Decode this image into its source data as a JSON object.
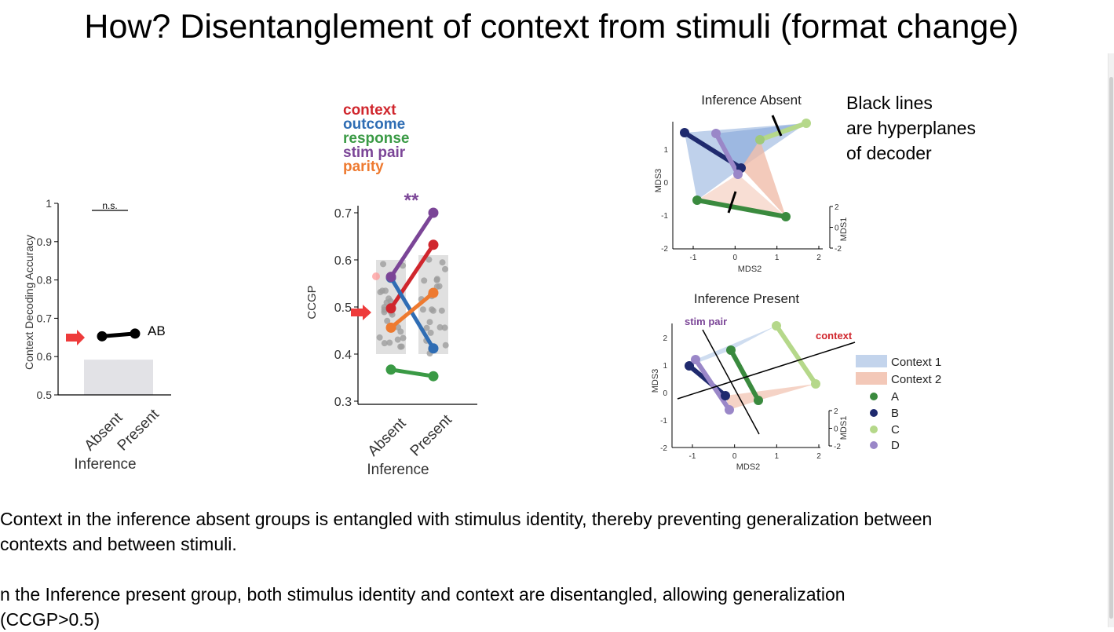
{
  "title": "How? Disentanglement of context from stimuli (format change)",
  "bullets": [
    {
      "line1": "Context in the inference absent groups is entangled with stimulus identity, thereby preventing generalization between",
      "line2": "contexts and between stimuli."
    },
    {
      "line1": "n the Inference present group, both stimulus identity and context are disentangled, allowing generalization",
      "line2": "(CCGP>0.5)"
    }
  ],
  "colors": {
    "context": "#d0262d",
    "outcome": "#2f6db4",
    "response": "#3a9a45",
    "stim_pair": "#7b4597",
    "parity": "#ee7a30",
    "A": "#3a8a3e",
    "B": "#1f2a6e",
    "C": "#b5d88a",
    "D": "#9a87c8",
    "context1_fill": "#a9c2e4",
    "context2_fill": "#efb8a4"
  },
  "chart_data": [
    {
      "type": "line",
      "ylabel": "Context Decoding Accuracy",
      "xlabel": "Inference",
      "categories": [
        "Absent",
        "Present"
      ],
      "ylim": [
        0.5,
        1
      ],
      "yticks": [
        "0.5",
        "0.6",
        "0.7",
        "0.8",
        "0.9",
        "1"
      ],
      "series": [
        {
          "name": "AB",
          "values": [
            0.653,
            0.66
          ]
        }
      ],
      "null_bars": [
        0.592,
        0.592
      ],
      "significance": "n.s."
    },
    {
      "type": "line",
      "ylabel": "CCGP",
      "xlabel": "Inference",
      "categories": [
        "Absent",
        "Present"
      ],
      "ylim": [
        0.3,
        0.7
      ],
      "yticks": [
        "0.3",
        "0.4",
        "0.5",
        "0.6",
        "0.7"
      ],
      "legend": [
        "context",
        "outcome",
        "response",
        "stim pair",
        "parity"
      ],
      "series": [
        {
          "name": "context",
          "values": [
            0.497,
            0.632
          ]
        },
        {
          "name": "outcome",
          "values": [
            0.562,
            0.412
          ]
        },
        {
          "name": "response",
          "values": [
            0.367,
            0.353
          ]
        },
        {
          "name": "stim pair",
          "values": [
            0.564,
            0.7
          ]
        },
        {
          "name": "parity",
          "values": [
            0.456,
            0.53
          ]
        }
      ],
      "null_boxes": [
        [
          0.4,
          0.6
        ],
        [
          0.4,
          0.61
        ]
      ],
      "significance": "**"
    },
    {
      "type": "scatter",
      "title": "Inference Absent",
      "xlabel": "MDS2",
      "ylabel": "MDS3",
      "zlabel": "MDS1",
      "xticks": [
        "-1",
        "0",
        "1",
        "2"
      ],
      "yticks": [
        "1",
        "0",
        "-1",
        "-2"
      ],
      "zticks": [
        "2",
        "0",
        "-2"
      ],
      "note": "Black lines are hyperplanes of decoder"
    },
    {
      "type": "scatter",
      "title": "Inference Present",
      "xlabel": "MDS2",
      "ylabel": "MDS3",
      "zlabel": "MDS1",
      "xticks": [
        "-1",
        "0",
        "1",
        "2"
      ],
      "yticks": [
        "2",
        "1",
        "0",
        "-1",
        "-2"
      ],
      "zticks": [
        "2",
        "0",
        "-2"
      ],
      "hyperplane_labels": [
        "stim pair",
        "context"
      ],
      "legend": [
        "Context 1",
        "Context 2",
        "A",
        "B",
        "C",
        "D"
      ]
    }
  ]
}
